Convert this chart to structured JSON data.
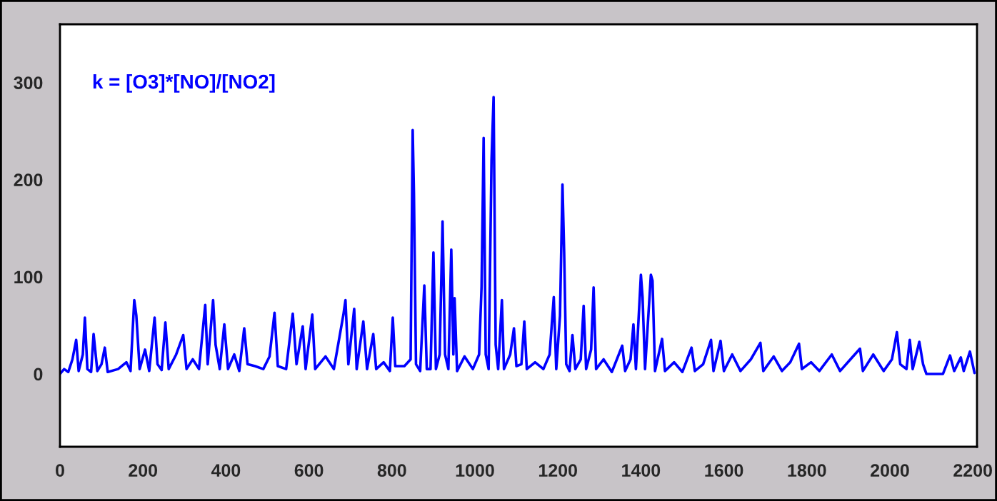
{
  "chart_data": {
    "type": "line",
    "annotations": [
      "k = [O3]*[NO]/[NO2]"
    ],
    "x": [
      0,
      10,
      20,
      30,
      39,
      45,
      55,
      60,
      66,
      75,
      81,
      90,
      100,
      108,
      115,
      140,
      160,
      170,
      179,
      184,
      192,
      205,
      215,
      228,
      235,
      245,
      254,
      262,
      280,
      297,
      305,
      320,
      335,
      350,
      356,
      369,
      375,
      385,
      396,
      405,
      420,
      432,
      444,
      452,
      470,
      490,
      505,
      517,
      525,
      545,
      561,
      570,
      585,
      592,
      608,
      615,
      640,
      660,
      683,
      688,
      695,
      709,
      715,
      731,
      740,
      755,
      762,
      780,
      795,
      802,
      808,
      830,
      845,
      850,
      853,
      858,
      868,
      878,
      884,
      893,
      900,
      906,
      915,
      922,
      928,
      936,
      943,
      948,
      951,
      957,
      975,
      995,
      1010,
      1016,
      1021,
      1026,
      1033,
      1040,
      1045,
      1050,
      1056,
      1065,
      1070,
      1085,
      1094,
      1100,
      1112,
      1119,
      1125,
      1145,
      1165,
      1180,
      1190,
      1196,
      1205,
      1211,
      1215,
      1220,
      1228,
      1235,
      1242,
      1255,
      1262,
      1268,
      1280,
      1286,
      1292,
      1310,
      1330,
      1355,
      1362,
      1375,
      1382,
      1388,
      1400,
      1404,
      1410,
      1424,
      1428,
      1434,
      1451,
      1458,
      1480,
      1500,
      1522,
      1530,
      1550,
      1569,
      1575,
      1592,
      1600,
      1620,
      1640,
      1665,
      1688,
      1695,
      1720,
      1740,
      1760,
      1781,
      1788,
      1810,
      1830,
      1860,
      1880,
      1905,
      1928,
      1935,
      1960,
      1985,
      2005,
      2017,
      2025,
      2040,
      2048,
      2055,
      2071,
      2080,
      2088,
      2128,
      2145,
      2155,
      2171,
      2178,
      2193,
      2204
    ],
    "series": [
      {
        "color": "#0000ff",
        "values": [
          0,
          5,
          2,
          15,
          35,
          3,
          20,
          58,
          5,
          2,
          41,
          3,
          10,
          27,
          2,
          5,
          12,
          3,
          76,
          60,
          5,
          25,
          3,
          58,
          10,
          4,
          53,
          5,
          20,
          40,
          5,
          15,
          5,
          71,
          10,
          76,
          30,
          5,
          51,
          5,
          20,
          3,
          47,
          10,
          8,
          5,
          18,
          63,
          8,
          5,
          62,
          10,
          49,
          5,
          61,
          5,
          18,
          5,
          61,
          76,
          10,
          67,
          5,
          54,
          5,
          41,
          5,
          12,
          3,
          58,
          8,
          8,
          15,
          251,
          186,
          10,
          3,
          91,
          5,
          5,
          125,
          5,
          20,
          157,
          20,
          5,
          128,
          20,
          78,
          3,
          18,
          5,
          20,
          90,
          243,
          20,
          5,
          220,
          285,
          30,
          5,
          76,
          5,
          20,
          47,
          8,
          10,
          54,
          5,
          12,
          5,
          20,
          79,
          5,
          60,
          195,
          126,
          10,
          3,
          40,
          5,
          15,
          70,
          5,
          25,
          89,
          5,
          15,
          2,
          29,
          3,
          15,
          51,
          5,
          102,
          79,
          5,
          102,
          96,
          3,
          36,
          3,
          12,
          2,
          27,
          3,
          10,
          35,
          3,
          34,
          3,
          20,
          3,
          15,
          32,
          3,
          18,
          3,
          12,
          31,
          5,
          12,
          3,
          20,
          3,
          15,
          26,
          3,
          20,
          3,
          15,
          43,
          10,
          5,
          35,
          5,
          33,
          10,
          0,
          0,
          19,
          3,
          17,
          3,
          23,
          1
        ]
      }
    ],
    "xlim": [
      0,
      2210
    ],
    "ylim": [
      -75,
      360
    ],
    "xticks": [
      0,
      200,
      400,
      600,
      800,
      1000,
      1200,
      1400,
      1600,
      1800,
      2000,
      2200
    ],
    "yticks": [
      0,
      100,
      200,
      300
    ],
    "grid": false,
    "legend": false,
    "line_style": "solid",
    "marker": "none"
  }
}
